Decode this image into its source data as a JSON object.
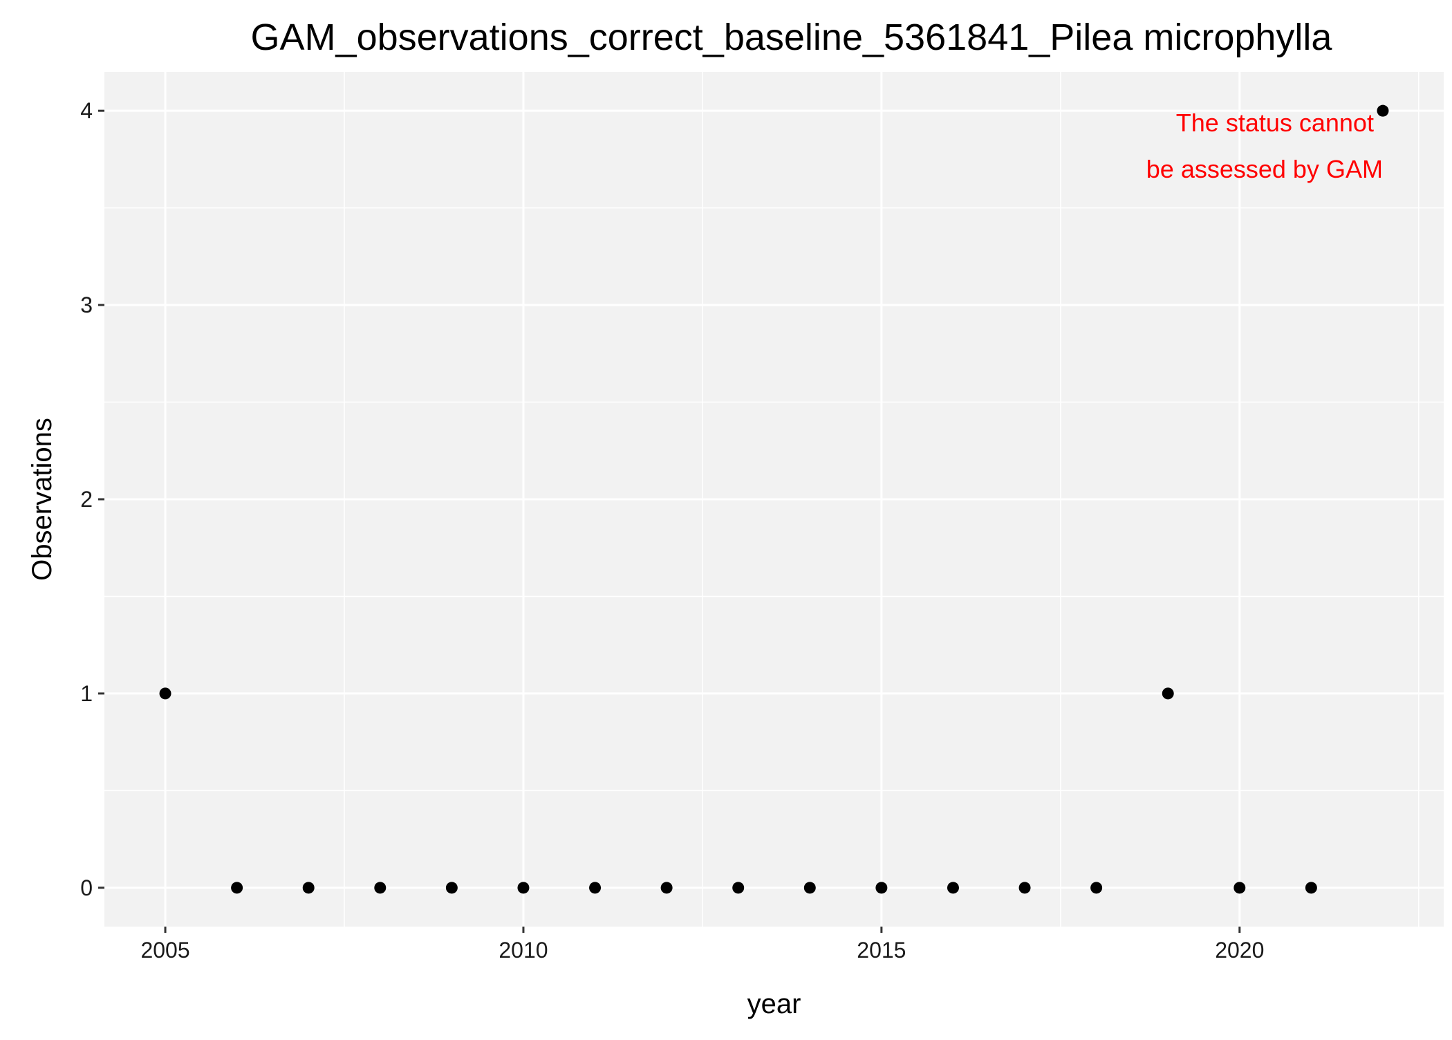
{
  "chart_data": {
    "type": "scatter",
    "title": "GAM_observations_correct_baseline_5361841_Pilea microphylla",
    "xlabel": "year",
    "ylabel": "Observations",
    "x": [
      2005,
      2006,
      2007,
      2008,
      2009,
      2010,
      2011,
      2012,
      2013,
      2014,
      2015,
      2016,
      2017,
      2018,
      2019,
      2020,
      2021,
      2022
    ],
    "y": [
      1,
      0,
      0,
      0,
      0,
      0,
      0,
      0,
      0,
      0,
      0,
      0,
      0,
      0,
      1,
      0,
      0,
      4
    ],
    "xlim": [
      2004.15,
      2022.85
    ],
    "ylim": [
      -0.2,
      4.2
    ],
    "x_ticks": [
      2005,
      2010,
      2015,
      2020
    ],
    "x_tick_labels": [
      "2005",
      "2010",
      "2015",
      "2020"
    ],
    "y_ticks": [
      0,
      1,
      2,
      3,
      4
    ],
    "y_tick_labels": [
      "0",
      "1",
      "2",
      "3",
      "4"
    ],
    "grid": true,
    "annotation": {
      "lines": [
        "The status cannot",
        "be assessed by GAM"
      ],
      "x": 2022,
      "y": 4,
      "color": "#ff0000"
    },
    "point_color": "#000000",
    "panel_background": "#f2f2f2",
    "grid_color": "#ffffff"
  }
}
